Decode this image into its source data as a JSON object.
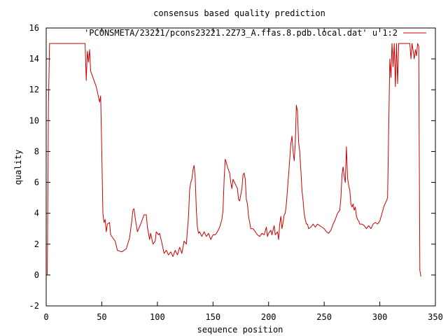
{
  "colors": {
    "series": "#cc0000",
    "axis": "#000000",
    "background": "#ffffff"
  },
  "chart_data": {
    "type": "line",
    "title": "consensus based quality prediction",
    "xlabel": "sequence position",
    "ylabel": "quality",
    "xlim": [
      0,
      350
    ],
    "ylim": [
      -2,
      16
    ],
    "grid": false,
    "legend_position": "top-right",
    "x_ticks": [
      0,
      50,
      100,
      150,
      200,
      250,
      300,
      350
    ],
    "y_ticks": [
      -2,
      0,
      2,
      4,
      6,
      8,
      10,
      12,
      14,
      16
    ],
    "series": [
      {
        "name": "'PCONSMETA/23221/pcons23221.2Z73_A.ffas.8.pdb.local.dat' u 1:2",
        "points": [
          [
            1,
            0
          ],
          [
            2,
            11
          ],
          [
            3,
            15
          ],
          [
            20,
            15
          ],
          [
            35,
            15
          ],
          [
            36,
            12.6
          ],
          [
            37,
            14.5
          ],
          [
            38,
            13.8
          ],
          [
            39,
            14.6
          ],
          [
            40,
            13.2
          ],
          [
            42,
            12.8
          ],
          [
            45,
            12.2
          ],
          [
            48,
            11.2
          ],
          [
            49,
            11.6
          ],
          [
            50,
            8.0
          ],
          [
            51,
            4.0
          ],
          [
            52,
            3.4
          ],
          [
            53,
            3.6
          ],
          [
            54,
            2.8
          ],
          [
            55,
            3.3
          ],
          [
            57,
            3.4
          ],
          [
            58,
            2.6
          ],
          [
            60,
            2.4
          ],
          [
            62,
            2.2
          ],
          [
            64,
            1.6
          ],
          [
            68,
            1.5
          ],
          [
            72,
            1.7
          ],
          [
            75,
            2.4
          ],
          [
            77,
            3.5
          ],
          [
            78,
            4.2
          ],
          [
            79,
            4.3
          ],
          [
            80,
            3.7
          ],
          [
            82,
            2.8
          ],
          [
            85,
            3.3
          ],
          [
            88,
            3.9
          ],
          [
            90,
            3.9
          ],
          [
            91,
            3.1
          ],
          [
            93,
            2.3
          ],
          [
            94,
            2.7
          ],
          [
            96,
            2.0
          ],
          [
            98,
            2.2
          ],
          [
            99,
            2.8
          ],
          [
            101,
            2.6
          ],
          [
            102,
            2.7
          ],
          [
            104,
            2.1
          ],
          [
            106,
            1.4
          ],
          [
            108,
            1.6
          ],
          [
            110,
            1.3
          ],
          [
            112,
            1.5
          ],
          [
            114,
            1.2
          ],
          [
            116,
            1.6
          ],
          [
            118,
            1.3
          ],
          [
            120,
            1.8
          ],
          [
            122,
            1.4
          ],
          [
            124,
            2.2
          ],
          [
            126,
            2.0
          ],
          [
            128,
            3.8
          ],
          [
            129,
            5.5
          ],
          [
            130,
            6.0
          ],
          [
            131,
            6.2
          ],
          [
            132,
            6.8
          ],
          [
            133,
            7.1
          ],
          [
            134,
            6.3
          ],
          [
            135,
            4.2
          ],
          [
            136,
            3.1
          ],
          [
            137,
            2.7
          ],
          [
            138,
            2.8
          ],
          [
            140,
            2.5
          ],
          [
            142,
            2.8
          ],
          [
            144,
            2.5
          ],
          [
            146,
            2.7
          ],
          [
            148,
            2.3
          ],
          [
            150,
            2.6
          ],
          [
            152,
            2.6
          ],
          [
            154,
            2.8
          ],
          [
            156,
            3.1
          ],
          [
            158,
            3.6
          ],
          [
            159,
            4.2
          ],
          [
            160,
            6.2
          ],
          [
            161,
            7.5
          ],
          [
            162,
            7.3
          ],
          [
            163,
            7.0
          ],
          [
            165,
            6.6
          ],
          [
            166,
            6.0
          ],
          [
            167,
            5.6
          ],
          [
            168,
            6.2
          ],
          [
            170,
            5.9
          ],
          [
            172,
            5.6
          ],
          [
            173,
            4.9
          ],
          [
            174,
            4.8
          ],
          [
            176,
            5.6
          ],
          [
            177,
            6.5
          ],
          [
            178,
            6.6
          ],
          [
            179,
            6.2
          ],
          [
            180,
            4.9
          ],
          [
            181,
            4.6
          ],
          [
            182,
            3.8
          ],
          [
            184,
            3.0
          ],
          [
            186,
            3.0
          ],
          [
            188,
            2.8
          ],
          [
            190,
            2.6
          ],
          [
            192,
            2.5
          ],
          [
            194,
            2.7
          ],
          [
            196,
            2.6
          ],
          [
            198,
            3.1
          ],
          [
            199,
            2.5
          ],
          [
            200,
            2.7
          ],
          [
            202,
            2.9
          ],
          [
            203,
            2.6
          ],
          [
            205,
            3.2
          ],
          [
            206,
            2.6
          ],
          [
            208,
            2.8
          ],
          [
            209,
            2.3
          ],
          [
            210,
            3.3
          ],
          [
            211,
            3.8
          ],
          [
            212,
            3.0
          ],
          [
            213,
            3.4
          ],
          [
            214,
            3.9
          ],
          [
            215,
            4.0
          ],
          [
            216,
            4.6
          ],
          [
            218,
            6.5
          ],
          [
            220,
            8.5
          ],
          [
            221,
            9.0
          ],
          [
            222,
            8.0
          ],
          [
            223,
            7.4
          ],
          [
            224,
            8.5
          ],
          [
            225,
            11.0
          ],
          [
            226,
            10.6
          ],
          [
            227,
            8.6
          ],
          [
            228,
            8.0
          ],
          [
            229,
            6.8
          ],
          [
            230,
            5.5
          ],
          [
            231,
            4.8
          ],
          [
            232,
            4.0
          ],
          [
            233,
            3.6
          ],
          [
            234,
            3.3
          ],
          [
            235,
            3.3
          ],
          [
            236,
            3.0
          ],
          [
            238,
            3.1
          ],
          [
            240,
            3.3
          ],
          [
            242,
            3.1
          ],
          [
            244,
            3.3
          ],
          [
            246,
            3.2
          ],
          [
            248,
            3.1
          ],
          [
            250,
            3.0
          ],
          [
            252,
            2.8
          ],
          [
            254,
            2.7
          ],
          [
            256,
            2.9
          ],
          [
            258,
            3.3
          ],
          [
            260,
            3.6
          ],
          [
            262,
            4.0
          ],
          [
            264,
            4.2
          ],
          [
            265,
            5.0
          ],
          [
            266,
            6.5
          ],
          [
            267,
            7.0
          ],
          [
            268,
            6.4
          ],
          [
            269,
            6.0
          ],
          [
            270,
            8.3
          ],
          [
            271,
            6.3
          ],
          [
            272,
            5.8
          ],
          [
            273,
            5.5
          ],
          [
            274,
            4.6
          ],
          [
            275,
            4.4
          ],
          [
            276,
            4.6
          ],
          [
            277,
            4.2
          ],
          [
            278,
            4.4
          ],
          [
            279,
            3.8
          ],
          [
            280,
            3.6
          ],
          [
            281,
            3.5
          ],
          [
            282,
            3.3
          ],
          [
            284,
            3.3
          ],
          [
            286,
            3.2
          ],
          [
            288,
            3.0
          ],
          [
            290,
            3.2
          ],
          [
            292,
            3.0
          ],
          [
            294,
            3.3
          ],
          [
            296,
            3.4
          ],
          [
            298,
            3.3
          ],
          [
            300,
            3.5
          ],
          [
            302,
            4.0
          ],
          [
            304,
            4.5
          ],
          [
            306,
            4.8
          ],
          [
            307,
            5.0
          ],
          [
            308,
            9.5
          ],
          [
            309,
            14.0
          ],
          [
            310,
            12.8
          ],
          [
            311,
            15.0
          ],
          [
            312,
            13.5
          ],
          [
            313,
            15.0
          ],
          [
            314,
            12.2
          ],
          [
            315,
            15.0
          ],
          [
            316,
            12.4
          ],
          [
            317,
            15.0
          ],
          [
            320,
            15.0
          ],
          [
            325,
            15.0
          ],
          [
            327,
            15.0
          ],
          [
            328,
            14.0
          ],
          [
            329,
            15.0
          ],
          [
            331,
            14.0
          ],
          [
            332,
            14.6
          ],
          [
            333,
            14.2
          ],
          [
            334,
            15.0
          ],
          [
            335,
            14.8
          ],
          [
            336,
            0.3
          ],
          [
            337,
            -0.1
          ]
        ]
      }
    ]
  }
}
